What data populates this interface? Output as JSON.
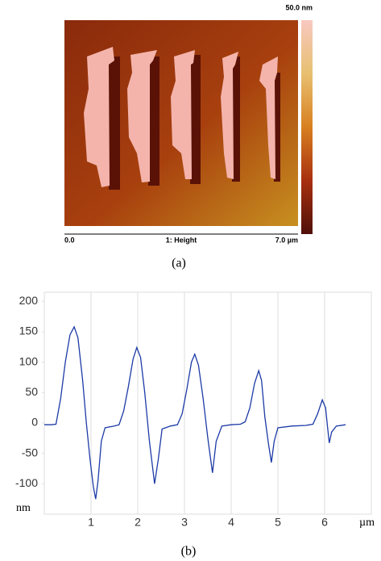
{
  "chart_data": [
    {
      "type": "image",
      "colorbar_label": "50.0 nm",
      "x_labels": [
        "0.0",
        "1: Height",
        "7.0 µm"
      ],
      "caption": "(a)"
    },
    {
      "type": "line",
      "caption": "(b)",
      "y_label": "nm",
      "x_label": "µm",
      "color": "#1c3aa6",
      "grid": "x",
      "xlim": [
        0,
        7
      ],
      "xticks": [
        1,
        2,
        3,
        4,
        5,
        6
      ],
      "ylim": [
        -150,
        215
      ],
      "yticks": [
        200,
        150,
        100,
        50,
        0,
        -50,
        -100
      ],
      "x": [
        0.0,
        0.15,
        0.25,
        0.35,
        0.45,
        0.55,
        0.64,
        0.72,
        0.82,
        0.9,
        0.98,
        1.05,
        1.1,
        1.15,
        1.22,
        1.3,
        1.5,
        1.6,
        1.7,
        1.8,
        1.9,
        1.98,
        2.06,
        2.15,
        2.25,
        2.36,
        2.44,
        2.52,
        2.7,
        2.85,
        2.95,
        3.05,
        3.15,
        3.22,
        3.3,
        3.4,
        3.5,
        3.6,
        3.68,
        3.8,
        4.0,
        4.2,
        4.3,
        4.4,
        4.5,
        4.59,
        4.65,
        4.72,
        4.8,
        4.86,
        4.92,
        5.0,
        5.3,
        5.6,
        5.75,
        5.85,
        5.95,
        6.02,
        6.06,
        6.1,
        6.15,
        6.25,
        6.45
      ],
      "values": [
        -3,
        -3,
        -2,
        40,
        100,
        145,
        158,
        140,
        70,
        0,
        -60,
        -105,
        -125,
        -95,
        -30,
        -8,
        -5,
        -3,
        20,
        60,
        105,
        124,
        108,
        50,
        -30,
        -100,
        -60,
        -10,
        -5,
        -3,
        15,
        55,
        100,
        113,
        95,
        40,
        -25,
        -82,
        -30,
        -5,
        -3,
        -2,
        2,
        25,
        65,
        86,
        70,
        10,
        -35,
        -65,
        -30,
        -8,
        -5,
        -4,
        -2,
        15,
        38,
        25,
        -5,
        -33,
        -15,
        -5,
        -3
      ]
    }
  ]
}
